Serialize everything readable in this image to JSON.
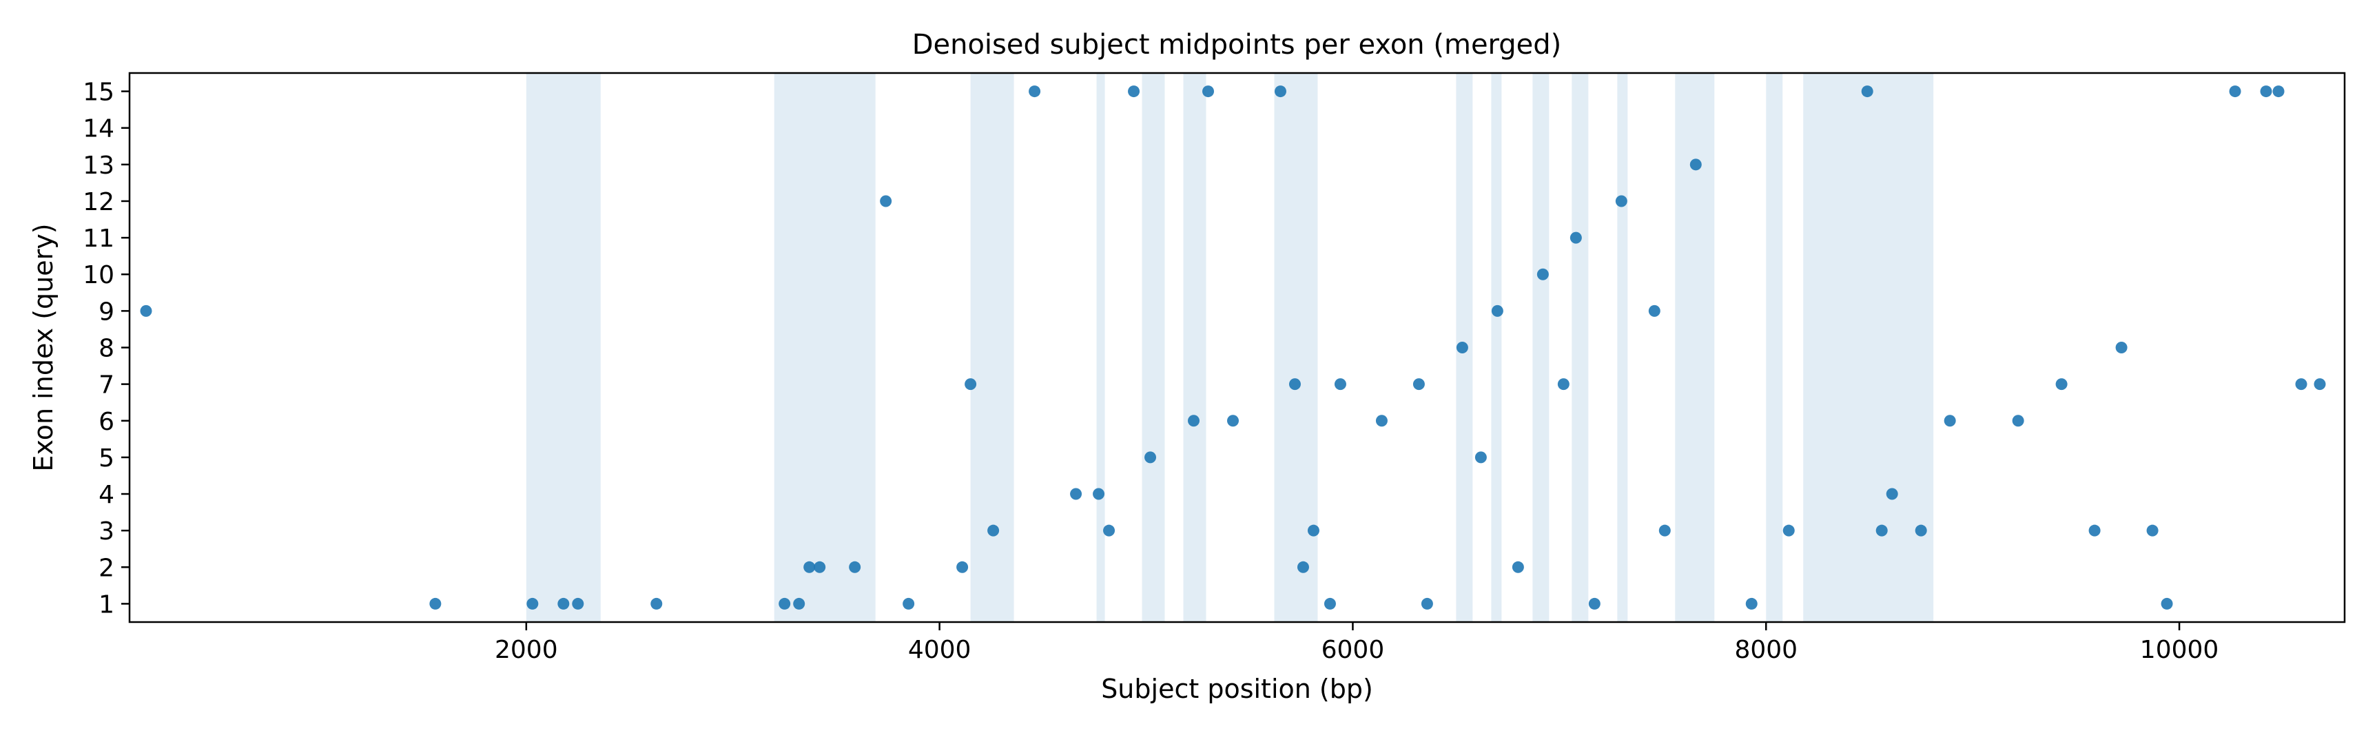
{
  "chart_data": {
    "type": "scatter",
    "title": "Denoised subject midpoints per exon (merged)",
    "xlabel": "Subject position (bp)",
    "ylabel": "Exon index (query)",
    "xlim": [
      80,
      10800
    ],
    "ylim": [
      0.5,
      15.5
    ],
    "x_ticks": [
      2000,
      4000,
      6000,
      8000,
      10000
    ],
    "y_ticks": [
      1,
      2,
      3,
      4,
      5,
      6,
      7,
      8,
      9,
      10,
      11,
      12,
      13,
      14,
      15
    ],
    "point_color": "#1f77b4",
    "band_color": "#dbe9f3",
    "grid": false,
    "bands": [
      [
        2000,
        2360
      ],
      [
        3200,
        3690
      ],
      [
        4150,
        4360
      ],
      [
        4760,
        4800
      ],
      [
        4980,
        5090
      ],
      [
        5180,
        5290
      ],
      [
        5620,
        5830
      ],
      [
        6500,
        6580
      ],
      [
        6670,
        6720
      ],
      [
        6870,
        6950
      ],
      [
        7060,
        7140
      ],
      [
        7280,
        7330
      ],
      [
        7560,
        7750
      ],
      [
        8000,
        8080
      ],
      [
        8180,
        8810
      ]
    ],
    "points": [
      [
        160,
        9
      ],
      [
        1560,
        1
      ],
      [
        2030,
        1
      ],
      [
        2180,
        1
      ],
      [
        2250,
        1
      ],
      [
        2630,
        1
      ],
      [
        3250,
        1
      ],
      [
        3320,
        1
      ],
      [
        3370,
        2
      ],
      [
        3420,
        2
      ],
      [
        3590,
        2
      ],
      [
        3740,
        12
      ],
      [
        3850,
        1
      ],
      [
        4110,
        2
      ],
      [
        4150,
        7
      ],
      [
        4260,
        3
      ],
      [
        4460,
        15
      ],
      [
        4660,
        4
      ],
      [
        4770,
        4
      ],
      [
        4820,
        3
      ],
      [
        4940,
        15
      ],
      [
        5020,
        5
      ],
      [
        5230,
        6
      ],
      [
        5300,
        15
      ],
      [
        5420,
        6
      ],
      [
        5650,
        15
      ],
      [
        5720,
        7
      ],
      [
        5760,
        2
      ],
      [
        5810,
        3
      ],
      [
        5890,
        1
      ],
      [
        5940,
        7
      ],
      [
        6140,
        6
      ],
      [
        6320,
        7
      ],
      [
        6360,
        1
      ],
      [
        6530,
        8
      ],
      [
        6620,
        5
      ],
      [
        6700,
        9
      ],
      [
        6800,
        2
      ],
      [
        6920,
        10
      ],
      [
        7020,
        7
      ],
      [
        7080,
        11
      ],
      [
        7170,
        1
      ],
      [
        7300,
        12
      ],
      [
        7460,
        9
      ],
      [
        7510,
        3
      ],
      [
        7660,
        13
      ],
      [
        7930,
        1
      ],
      [
        8110,
        3
      ],
      [
        8490,
        15
      ],
      [
        8560,
        3
      ],
      [
        8610,
        4
      ],
      [
        8750,
        3
      ],
      [
        8890,
        6
      ],
      [
        9220,
        6
      ],
      [
        9430,
        7
      ],
      [
        9590,
        3
      ],
      [
        9720,
        8
      ],
      [
        9870,
        3
      ],
      [
        9940,
        1
      ],
      [
        10270,
        15
      ],
      [
        10420,
        15
      ],
      [
        10480,
        15
      ],
      [
        10590,
        7
      ],
      [
        10680,
        7
      ]
    ]
  }
}
